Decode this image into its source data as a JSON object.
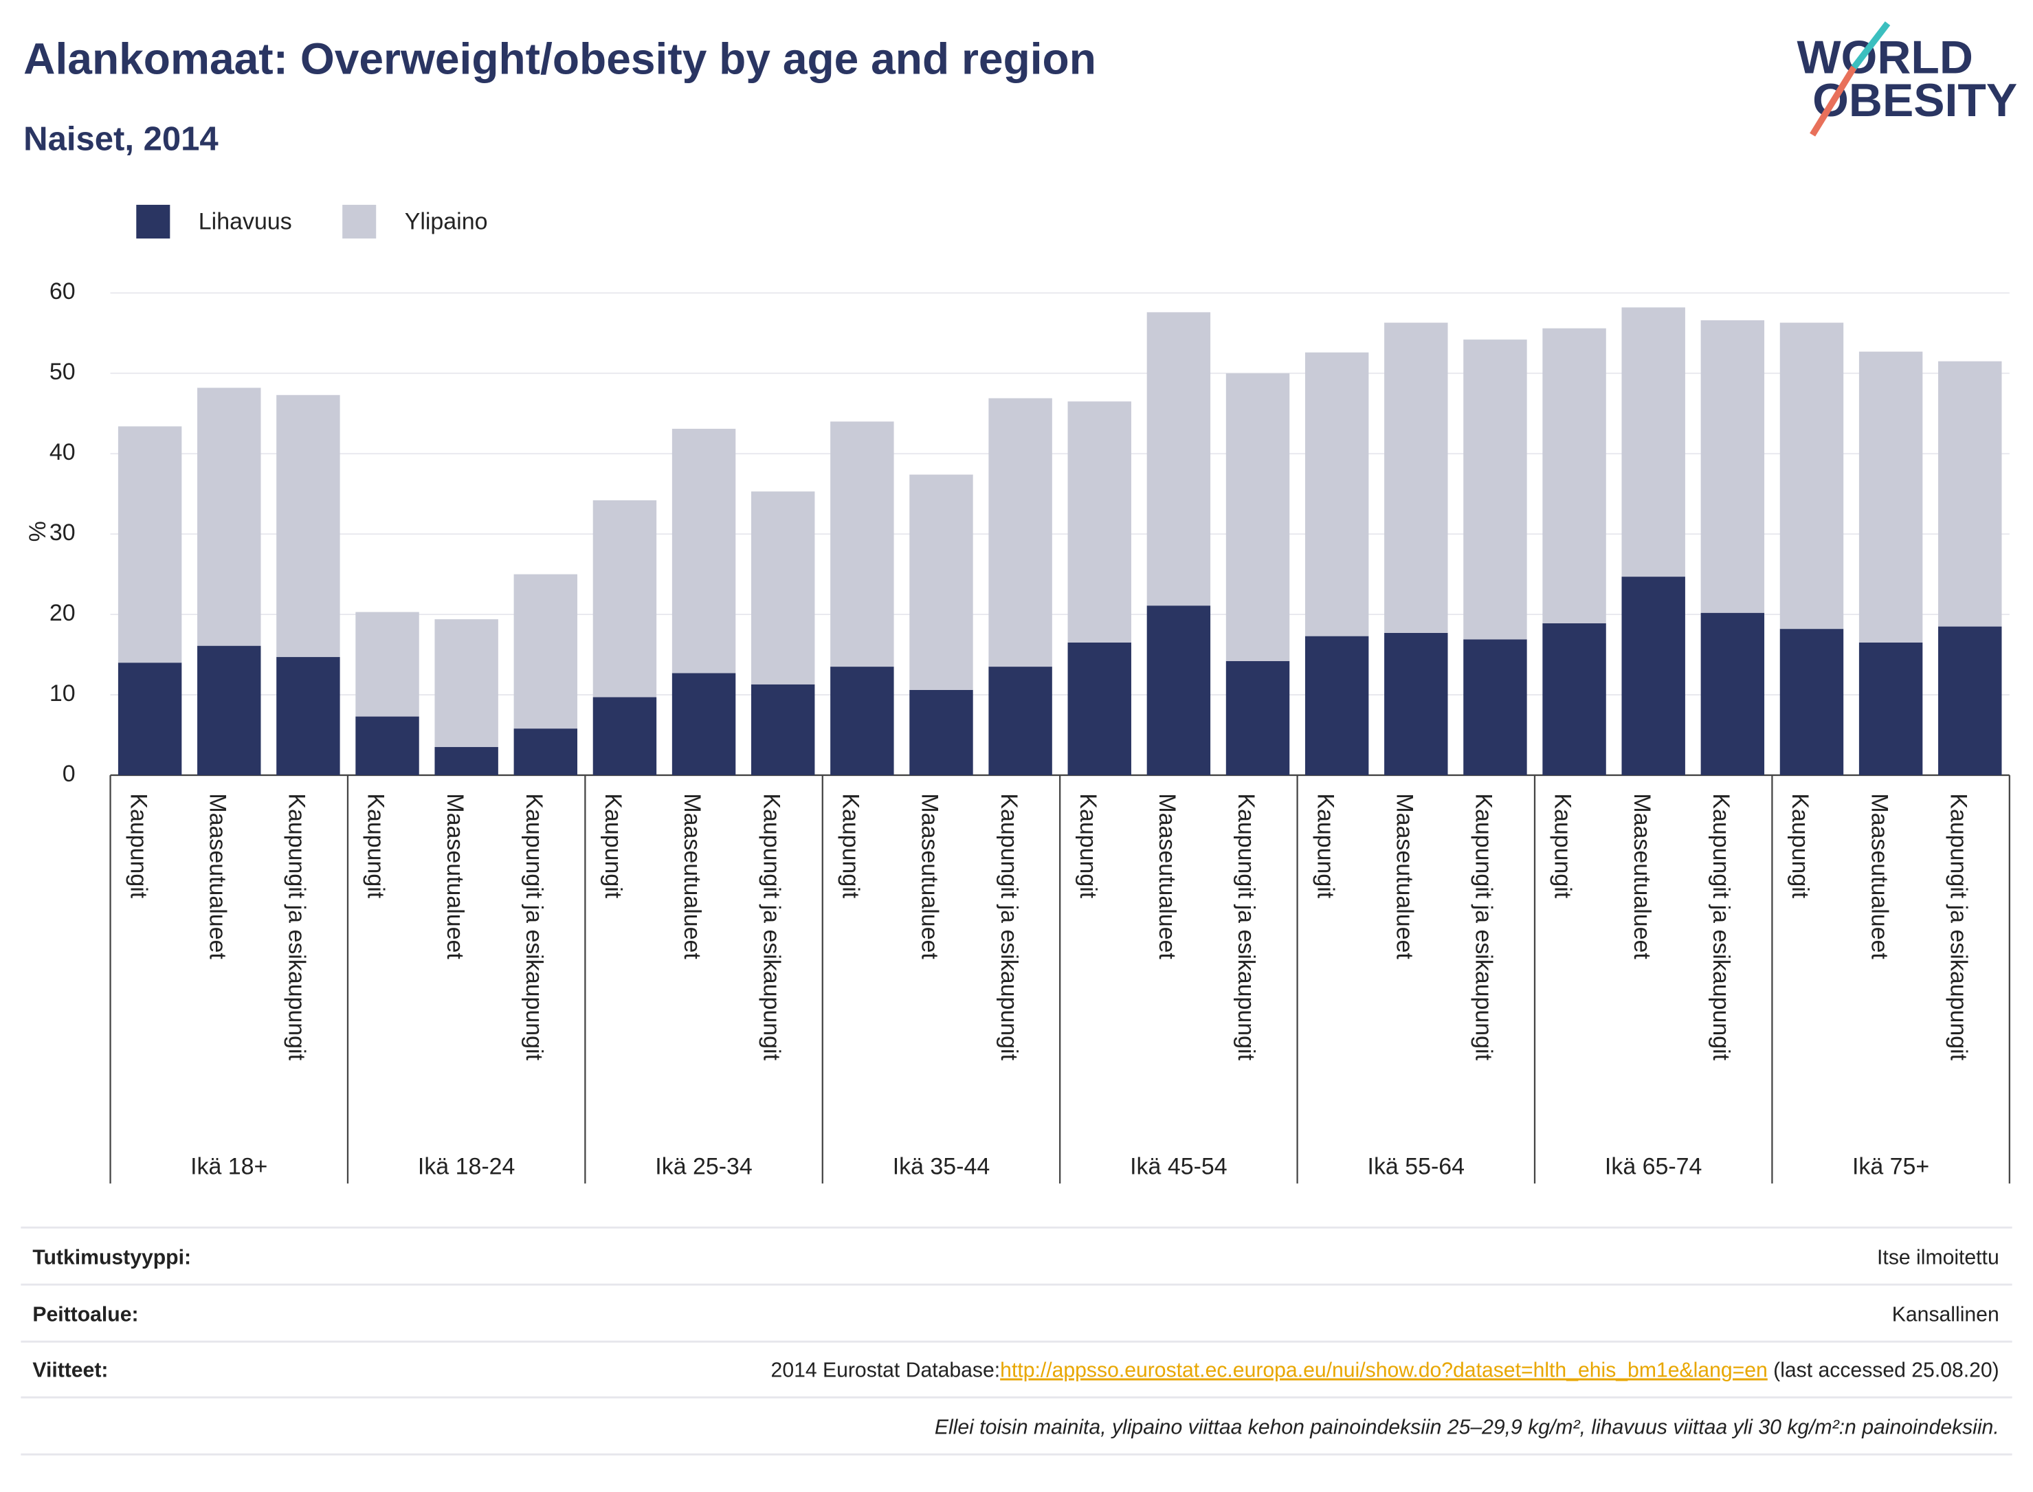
{
  "chart_data": {
    "type": "stacked_bar",
    "title": "Alankomaat: Overweight/obesity by age and region",
    "subtitle": "Naiset, 2014",
    "logo": [
      "WORLD",
      "OBESITY"
    ],
    "ylabel": "%",
    "groups": [
      "Ikä 18+",
      "Ikä 18-24",
      "Ikä 25-34",
      "Ikä 35-44",
      "Ikä 45-54",
      "Ikä 55-64",
      "Ikä 65-74",
      "Ikä 75+"
    ],
    "categories": [
      "Kaupungit",
      "Maaseutualueet",
      "Kaupungit ja esikaupungit",
      "Kaupungit",
      "Maaseutualueet",
      "Kaupungit ja esikaupungit",
      "Kaupungit",
      "Maaseutualueet",
      "Kaupungit ja esikaupungit",
      "Kaupungit",
      "Maaseutualueet",
      "Kaupungit ja esikaupungit",
      "Kaupungit",
      "Maaseutualueet",
      "Kaupungit ja esikaupungit",
      "Kaupungit",
      "Maaseutualueet",
      "Kaupungit ja esikaupungit",
      "Kaupungit",
      "Maaseutualueet",
      "Kaupungit ja esikaupungit",
      "Kaupungit",
      "Maaseutualueet",
      "Kaupungit ja esikaupungit"
    ],
    "series": [
      {
        "name": "Lihavuus",
        "color": "#2a3562",
        "values": [
          14.0,
          16.1,
          14.7,
          7.3,
          3.5,
          5.8,
          9.7,
          12.7,
          11.3,
          13.5,
          10.6,
          13.5,
          16.5,
          21.1,
          14.2,
          17.3,
          17.7,
          16.9,
          18.9,
          24.7,
          20.2,
          18.2,
          16.5,
          18.5
        ]
      },
      {
        "name": "Ylipaino",
        "color": "#c9cbd7",
        "values": [
          29.4,
          32.1,
          32.6,
          13.0,
          15.9,
          19.2,
          24.5,
          30.4,
          24.0,
          30.5,
          26.8,
          33.4,
          30.0,
          36.5,
          35.8,
          35.3,
          38.6,
          37.3,
          36.7,
          33.5,
          36.4,
          38.1,
          36.2,
          33.0
        ]
      }
    ],
    "ylim": [
      0,
      60
    ],
    "yticks": [
      0,
      10,
      20,
      30,
      40,
      50,
      60
    ],
    "grid": true,
    "legend": "top-left"
  },
  "footer": {
    "rows": [
      {
        "label": "Tutkimustyyppi:",
        "value": "Itse ilmoitettu"
      },
      {
        "label": "Peittoalue:",
        "value": "Kansallinen"
      },
      {
        "label": "Viitteet:",
        "prefix": "2014 Eurostat Database:",
        "link": "http://appsso.eurostat.ec.europa.eu/nui/show.do?dataset=hlth_ehis_bm1e&lang=en",
        "suffix": " (last accessed 25.08.20)"
      }
    ],
    "note": "Ellei toisin mainita, ylipaino viittaa kehon painoindeksiin 25–29,9 kg/m², lihavuus viittaa yli 30 kg/m²:n painoindeksiin."
  }
}
